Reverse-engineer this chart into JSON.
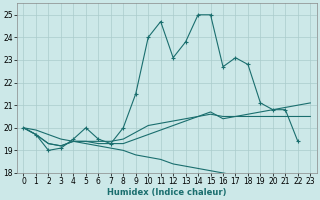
{
  "title": "",
  "xlabel": "Humidex (Indice chaleur)",
  "ylabel": "",
  "background_color": "#cce8e8",
  "grid_color": "#aacccc",
  "line_color": "#1a6e6e",
  "xlim": [
    -0.5,
    23.5
  ],
  "ylim": [
    18.0,
    25.5
  ],
  "yticks": [
    18,
    19,
    20,
    21,
    22,
    23,
    24,
    25
  ],
  "xticks": [
    0,
    1,
    2,
    3,
    4,
    5,
    6,
    7,
    8,
    9,
    10,
    11,
    12,
    13,
    14,
    15,
    16,
    17,
    18,
    19,
    20,
    21,
    22,
    23
  ],
  "series": [
    {
      "x": [
        0,
        1,
        2,
        3,
        4,
        5,
        6,
        7,
        8,
        9,
        10,
        11,
        12,
        13,
        14,
        15,
        16,
        17,
        18,
        19,
        20,
        21,
        22
      ],
      "y": [
        20.0,
        19.7,
        19.0,
        19.1,
        19.5,
        20.0,
        19.5,
        19.3,
        20.0,
        21.5,
        24.0,
        24.7,
        23.1,
        23.8,
        25.0,
        25.0,
        22.7,
        23.1,
        22.8,
        21.1,
        20.8,
        20.8,
        19.4
      ],
      "marker": "+"
    },
    {
      "x": [
        0,
        1,
        2,
        3,
        4,
        5,
        6,
        7,
        8,
        9,
        10,
        11,
        12,
        13,
        14,
        15,
        16,
        17,
        18,
        19,
        20,
        21,
        22,
        23
      ],
      "y": [
        20.0,
        19.7,
        19.3,
        19.2,
        19.4,
        19.4,
        19.3,
        19.3,
        19.3,
        19.5,
        19.7,
        19.9,
        20.1,
        20.3,
        20.5,
        20.7,
        20.4,
        20.5,
        20.6,
        20.7,
        20.8,
        20.9,
        21.0,
        21.1
      ],
      "marker": null
    },
    {
      "x": [
        0,
        1,
        2,
        3,
        4,
        5,
        6,
        7,
        8,
        9,
        10,
        11,
        12,
        13,
        14,
        15,
        16,
        17,
        18,
        19,
        20,
        21,
        22,
        23
      ],
      "y": [
        20.0,
        19.7,
        19.3,
        19.2,
        19.4,
        19.4,
        19.4,
        19.4,
        19.5,
        19.8,
        20.1,
        20.2,
        20.3,
        20.4,
        20.5,
        20.6,
        20.5,
        20.5,
        20.5,
        20.5,
        20.5,
        20.5,
        20.5,
        20.5
      ],
      "marker": null
    },
    {
      "x": [
        0,
        1,
        2,
        3,
        4,
        5,
        6,
        7,
        8,
        9,
        10,
        11,
        12,
        13,
        14,
        15,
        16,
        17,
        18,
        19,
        20,
        21,
        22,
        23
      ],
      "y": [
        20.0,
        19.9,
        19.7,
        19.5,
        19.4,
        19.3,
        19.2,
        19.1,
        19.0,
        18.8,
        18.7,
        18.6,
        18.4,
        18.3,
        18.2,
        18.1,
        18.0,
        17.9,
        17.8,
        17.8,
        17.7,
        17.7,
        17.6,
        17.6
      ],
      "marker": null
    }
  ],
  "marker_size": 3,
  "line_width": 0.8,
  "xlabel_fontsize": 6,
  "tick_fontsize": 5.5
}
